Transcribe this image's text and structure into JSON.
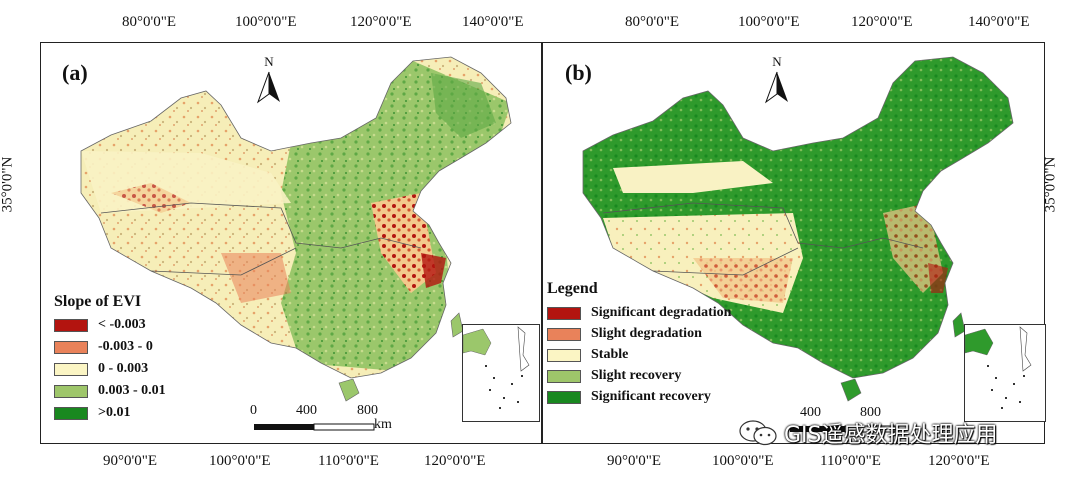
{
  "top_longitudes": [
    "80°0'0\"E",
    "100°0'0\"E",
    "120°0'0\"E",
    "140°0'0\"E"
  ],
  "bottom_longitudes": [
    "90°0'0\"E",
    "100°0'0\"E",
    "110°0'0\"E",
    "120°0'0\"E"
  ],
  "latitude": "35°0'0\"N",
  "north_letter": "N",
  "panel_a": {
    "label": "(a)",
    "legend_title": "Slope of EVI",
    "legend": [
      {
        "label": "< -0.003",
        "color": "#b3140f"
      },
      {
        "label": "-0.003 - 0",
        "color": "#e9825a"
      },
      {
        "label": "0 - 0.003",
        "color": "#fbf5c4"
      },
      {
        "label": "0.003 - 0.01",
        "color": "#9ec66a"
      },
      {
        "label": ">0.01",
        "color": "#19881f"
      }
    ],
    "scale": {
      "ticks": [
        "0",
        "400",
        "800"
      ],
      "unit": "km"
    }
  },
  "panel_b": {
    "label": "(b)",
    "legend_title": "Legend",
    "legend": [
      {
        "label": "Significant degradation",
        "color": "#b3140f"
      },
      {
        "label": "Slight degradation",
        "color": "#e9825a"
      },
      {
        "label": "Stable",
        "color": "#fbf5c4"
      },
      {
        "label": "Slight recovery",
        "color": "#9ec66a"
      },
      {
        "label": "Significant recovery",
        "color": "#19881f"
      }
    ],
    "scale": {
      "ticks": [
        "400",
        "800"
      ]
    }
  },
  "watermark": "GIS遥感数据处理应用"
}
